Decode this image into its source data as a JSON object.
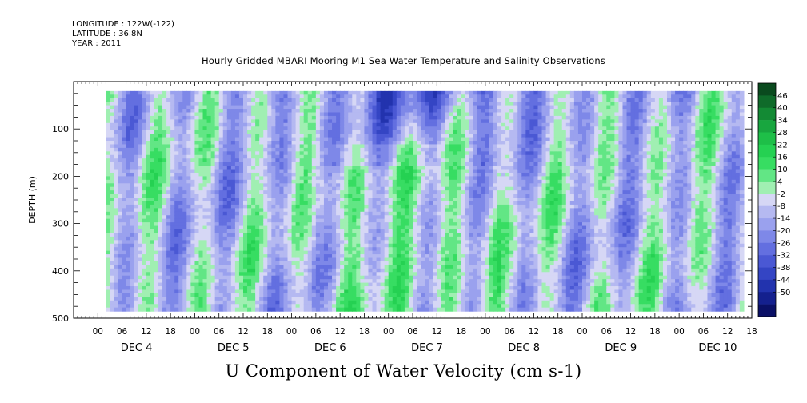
{
  "header": {
    "longitude": "LONGITUDE : 122W(-122)",
    "latitude": "LATITUDE : 36.8N",
    "year": "YEAR : 2011",
    "title": "Hourly Gridded MBARI Mooring M1 Sea Water Temperature and Salinity Observations"
  },
  "caption": "U Component of Water Velocity (cm s-1)",
  "chart_data": {
    "type": "heatmap",
    "title": "Hourly Gridded MBARI Mooring M1 Sea Water Temperature and Salinity Observations",
    "xlabel": "",
    "ylabel": "DEPTH (m)",
    "caption": "U Component of Water Velocity (cm s-1)",
    "ylim": [
      500,
      0
    ],
    "y_reversed": true,
    "y_ticks": [
      100,
      200,
      300,
      400,
      500
    ],
    "y_tick_labels": [
      "100",
      "200",
      "300",
      "400",
      "500"
    ],
    "x_hour_labels": [
      "00",
      "06",
      "12",
      "18",
      "00",
      "06",
      "12",
      "18",
      "00",
      "06",
      "12",
      "18",
      "00",
      "06",
      "12",
      "18",
      "00",
      "06",
      "12",
      "18",
      "00",
      "06",
      "12",
      "18",
      "00",
      "06",
      "12",
      "18"
    ],
    "x_day_labels": [
      "DEC  4",
      "DEC  5",
      "DEC  6",
      "DEC  7",
      "DEC  8",
      "DEC  9",
      "DEC 10"
    ],
    "x_range_hours": [
      -6,
      162
    ],
    "data_range_hours": [
      2,
      160
    ],
    "data_depth_range": [
      20,
      485
    ],
    "colorbar": {
      "levels": [
        "46",
        "40",
        "34",
        "28",
        "22",
        "16",
        "10",
        "4",
        "-2",
        "-8",
        "-14",
        "-20",
        "-26",
        "-32",
        "-38",
        "-44",
        "-50"
      ],
      "colors": [
        "#0a4a1e",
        "#0f6b2a",
        "#138a34",
        "#18a63f",
        "#1ebf48",
        "#25d152",
        "#37dd62",
        "#62e685",
        "#a0efb2",
        "#d6d7f5",
        "#b5b9f1",
        "#9aa1ee",
        "#7e88e8",
        "#636fe0",
        "#4a58d4",
        "#3445c4",
        "#2233ae",
        "#14208e",
        "#0a1066"
      ]
    },
    "field_pattern": [
      {
        "depth_range": [
          20,
          120
        ],
        "dominant": "weak positive / negative alternating, strong negative (-26 to -32) DEC 6-8"
      },
      {
        "depth_range": [
          120,
          485
        ],
        "dominant": "alternating bands of positive (10-22) and negative (-8 to -14) flow with ~12 h period"
      }
    ]
  },
  "colors": {
    "background": "#ffffff",
    "axis": "#000000",
    "positive": "#1ebf48",
    "negative": "#7e88e8"
  }
}
